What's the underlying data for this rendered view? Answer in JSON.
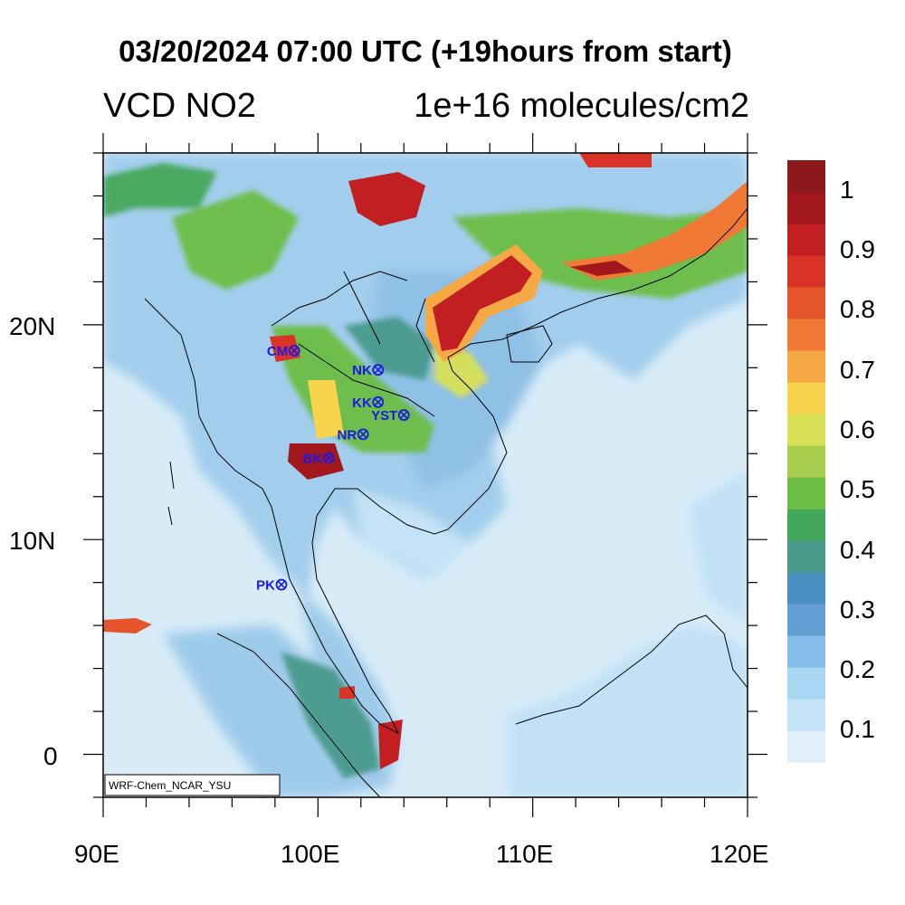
{
  "header": {
    "title": "03/20/2024 07:00 UTC (+19hours from start)",
    "variable": "VCD NO2",
    "units": "1e+16 molecules/cm2"
  },
  "map": {
    "lon_range": [
      90,
      120
    ],
    "lat_range": [
      -2,
      28
    ],
    "lon_ticks": [
      "90E",
      "100E",
      "110E",
      "120E"
    ],
    "lat_ticks": [
      "20N",
      "10N",
      "0"
    ],
    "credit": "WRF-Chem_NCAR_YSU",
    "ocean_color": "#d8ecf8",
    "land_background_color": "#a8cde8",
    "sites": [
      {
        "name": "CM",
        "lon": 98.9,
        "lat": 18.8
      },
      {
        "name": "NK",
        "lon": 102.8,
        "lat": 17.9
      },
      {
        "name": "KK",
        "lon": 102.8,
        "lat": 16.4
      },
      {
        "name": "YST",
        "lon": 104.0,
        "lat": 15.8
      },
      {
        "name": "NR",
        "lon": 102.1,
        "lat": 14.9
      },
      {
        "name": "BK",
        "lon": 100.5,
        "lat": 13.8
      },
      {
        "name": "PK",
        "lon": 98.3,
        "lat": 7.9
      }
    ],
    "site_color": "#1a1ae6"
  },
  "colorbar": {
    "labels": [
      "1",
      "0.9",
      "0.8",
      "0.7",
      "0.6",
      "0.5",
      "0.4",
      "0.3",
      "0.2",
      "0.1"
    ],
    "colors": [
      "#dff0fb",
      "#c4e3f6",
      "#a7d5f2",
      "#86bde8",
      "#649fd4",
      "#4a8fc1",
      "#4a9a8c",
      "#44a85a",
      "#6cbe45",
      "#a8cd4d",
      "#d9e157",
      "#f8d34c",
      "#f6a845",
      "#f07a35",
      "#e5552b",
      "#d93328",
      "#c21f23",
      "#a3181c",
      "#8c1a1a"
    ]
  }
}
